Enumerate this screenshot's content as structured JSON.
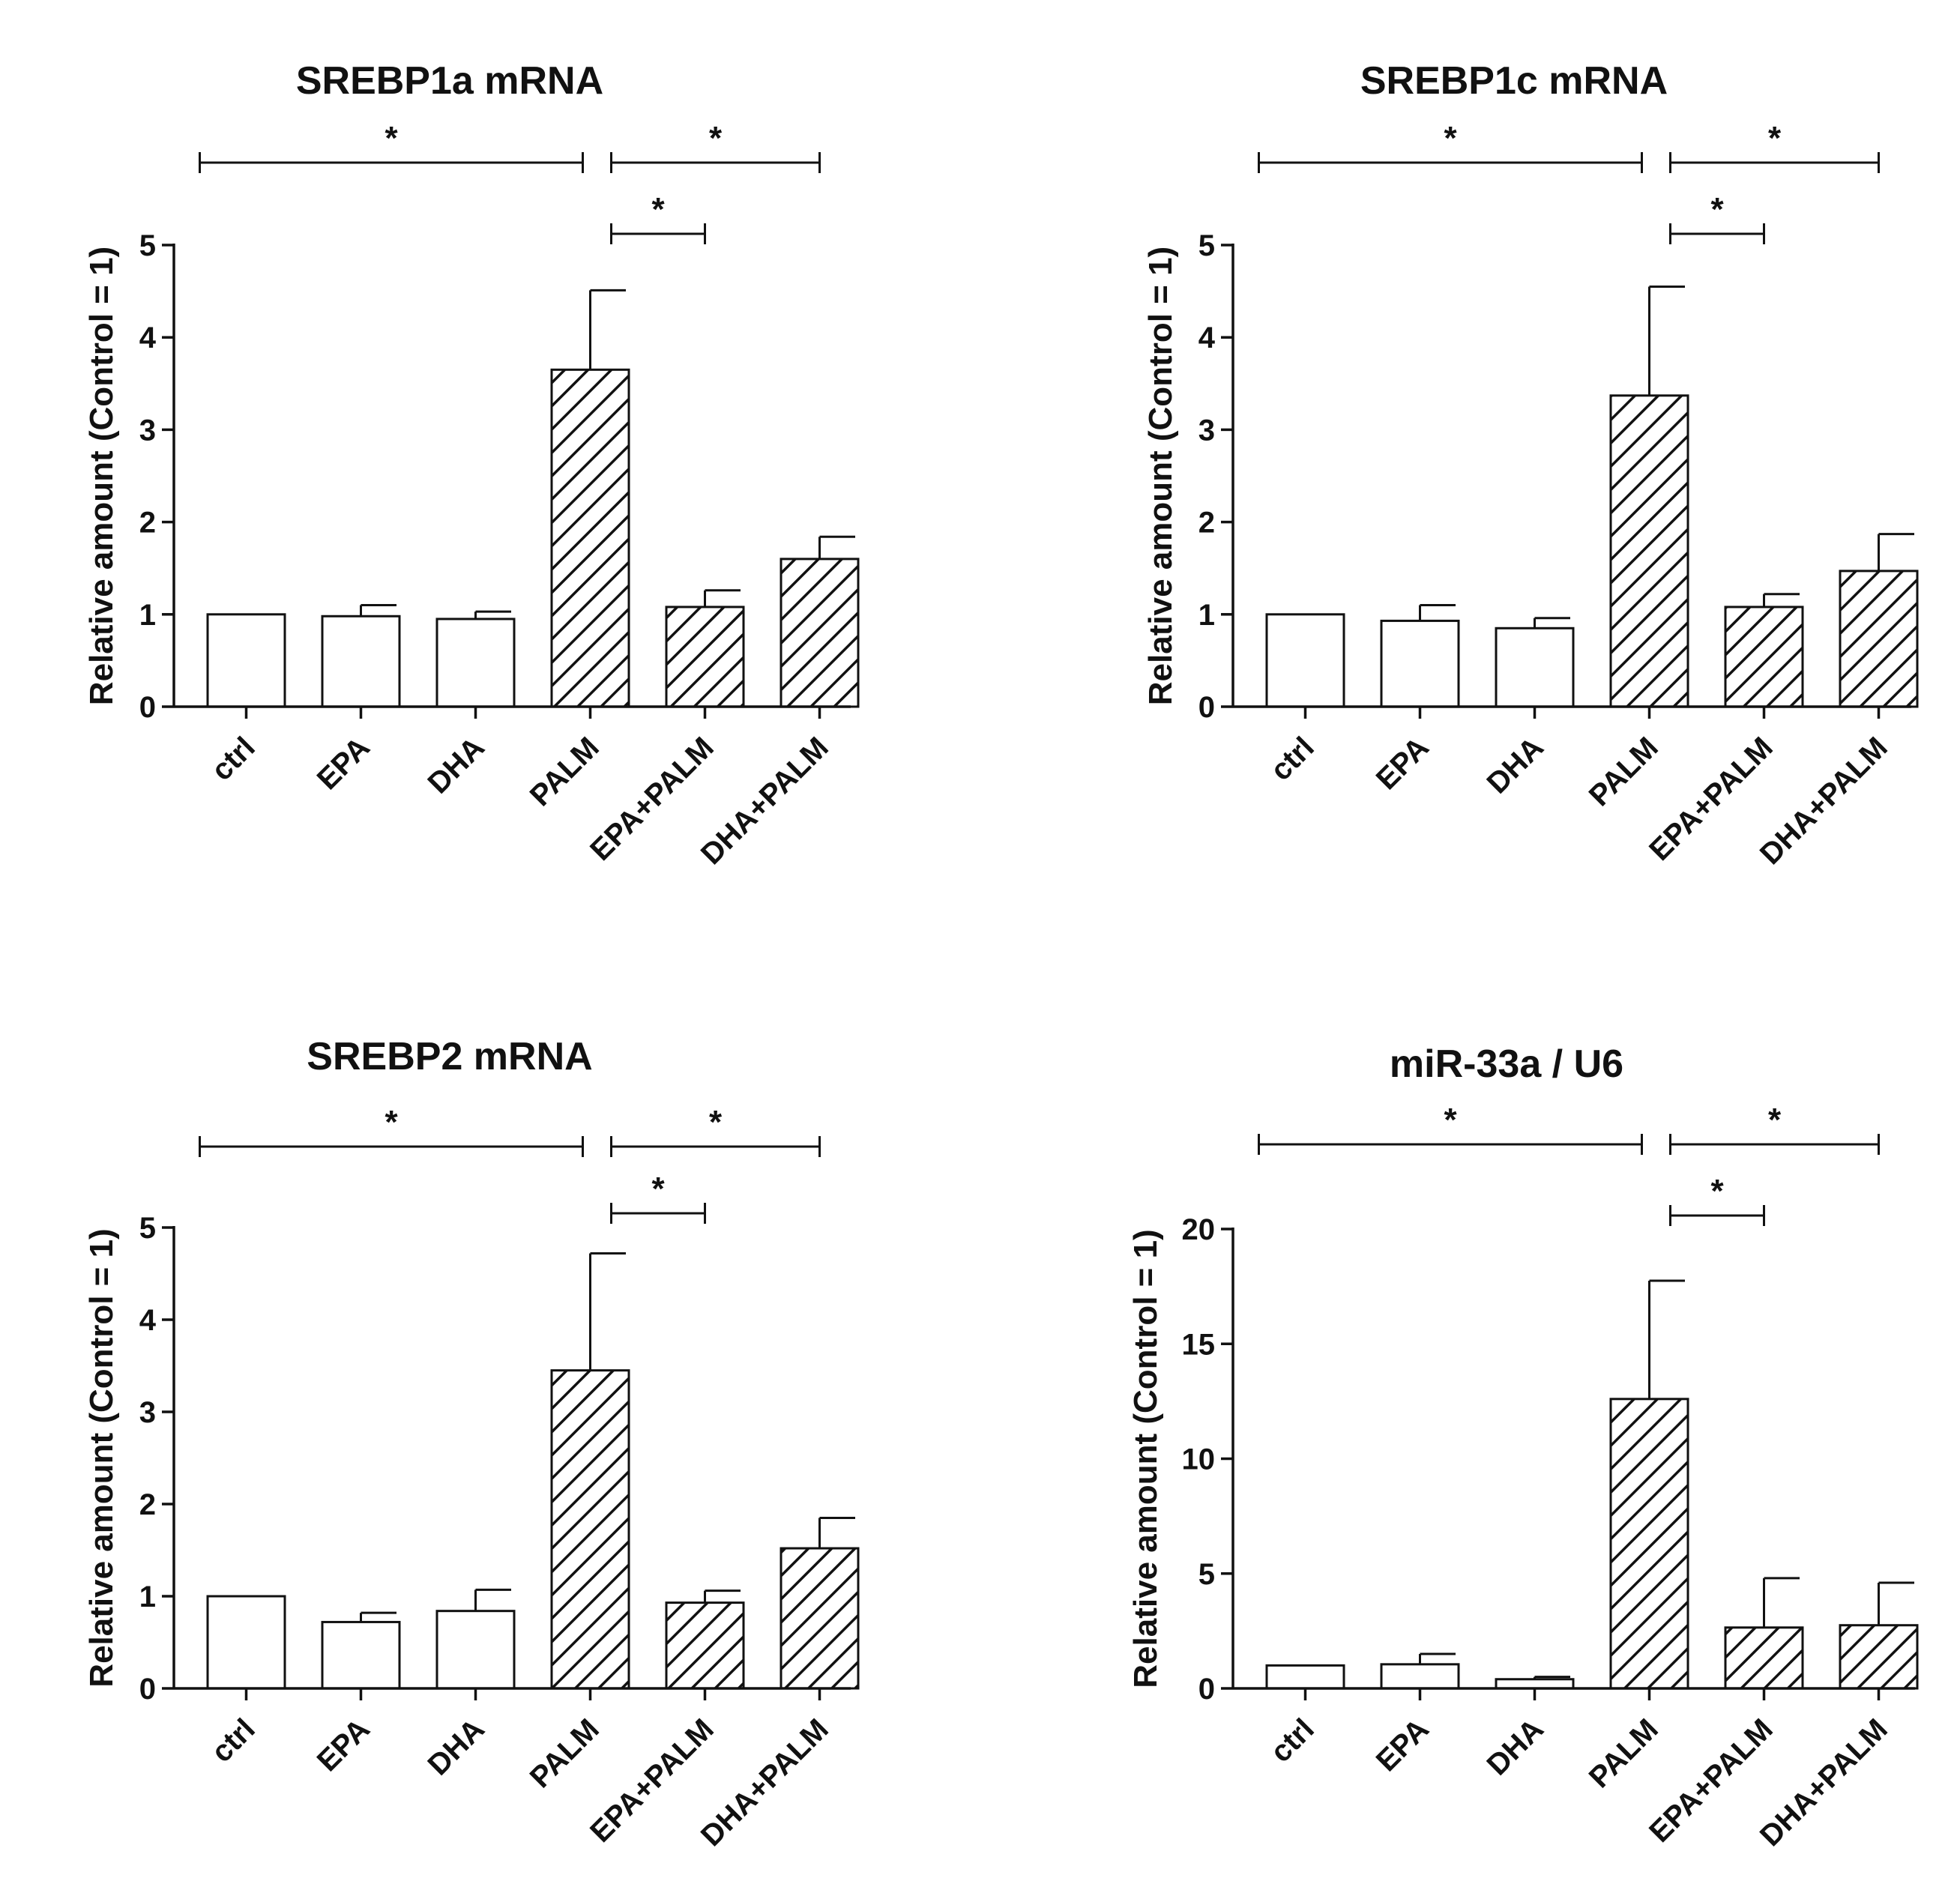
{
  "chart_data": [
    {
      "type": "bar",
      "title": "SREBP1a mRNA",
      "xlabel": "",
      "ylabel": "Relative amount (Control = 1)",
      "ylim": [
        0,
        5
      ],
      "yticks": [
        0,
        1,
        2,
        3,
        4,
        5
      ],
      "categories": [
        "ctrl",
        "EPA",
        "DHA",
        "PALM",
        "EPA+PALM",
        "DHA+PALM"
      ],
      "values": [
        1.0,
        0.98,
        0.95,
        3.65,
        1.08,
        1.6
      ],
      "errors": [
        0.0,
        0.12,
        0.08,
        0.86,
        0.18,
        0.24
      ],
      "hatched": [
        false,
        false,
        false,
        true,
        true,
        true
      ],
      "significance": [
        {
          "from": "ctrl",
          "to": "PALM",
          "label": "*"
        },
        {
          "from": "PALM",
          "to": "DHA+PALM",
          "label": "*"
        },
        {
          "from": "PALM",
          "to": "EPA+PALM",
          "label": "*"
        }
      ]
    },
    {
      "type": "bar",
      "title": "SREBP1c mRNA",
      "xlabel": "",
      "ylabel": "Relative amount (Control = 1)",
      "ylim": [
        0,
        5
      ],
      "yticks": [
        0,
        1,
        2,
        3,
        4,
        5
      ],
      "categories": [
        "ctrl",
        "EPA",
        "DHA",
        "PALM",
        "EPA+PALM",
        "DHA+PALM"
      ],
      "values": [
        1.0,
        0.93,
        0.85,
        3.37,
        1.08,
        1.47
      ],
      "errors": [
        0.0,
        0.17,
        0.11,
        1.18,
        0.14,
        0.4
      ],
      "hatched": [
        false,
        false,
        false,
        true,
        true,
        true
      ],
      "significance": [
        {
          "from": "ctrl",
          "to": "PALM",
          "label": "*"
        },
        {
          "from": "PALM",
          "to": "DHA+PALM",
          "label": "*"
        },
        {
          "from": "PALM",
          "to": "EPA+PALM",
          "label": "*"
        }
      ]
    },
    {
      "type": "bar",
      "title": "SREBP2 mRNA",
      "xlabel": "",
      "ylabel": "Relative amount (Control = 1)",
      "ylim": [
        0,
        5
      ],
      "yticks": [
        0,
        1,
        2,
        3,
        4,
        5
      ],
      "categories": [
        "ctrl",
        "EPA",
        "DHA",
        "PALM",
        "EPA+PALM",
        "DHA+PALM"
      ],
      "values": [
        1.0,
        0.72,
        0.84,
        3.45,
        0.93,
        1.52
      ],
      "errors": [
        0.0,
        0.1,
        0.23,
        1.27,
        0.13,
        0.33
      ],
      "hatched": [
        false,
        false,
        false,
        true,
        true,
        true
      ],
      "significance": [
        {
          "from": "ctrl",
          "to": "PALM",
          "label": "*"
        },
        {
          "from": "PALM",
          "to": "DHA+PALM",
          "label": "*"
        },
        {
          "from": "PALM",
          "to": "EPA+PALM",
          "label": "*"
        }
      ]
    },
    {
      "type": "bar",
      "title": "miR-33a / U6",
      "xlabel": "",
      "ylabel": "Relative amount (Control = 1)",
      "ylim": [
        0,
        20
      ],
      "yticks": [
        0,
        5,
        10,
        15,
        20
      ],
      "categories": [
        "ctrl",
        "EPA",
        "DHA",
        "PALM",
        "EPA+PALM",
        "DHA+PALM"
      ],
      "values": [
        1.0,
        1.05,
        0.4,
        12.6,
        2.65,
        2.75
      ],
      "errors": [
        0.0,
        0.45,
        0.1,
        5.15,
        2.15,
        1.85
      ],
      "hatched": [
        false,
        false,
        false,
        true,
        true,
        true
      ],
      "significance": [
        {
          "from": "ctrl",
          "to": "PALM",
          "label": "*"
        },
        {
          "from": "PALM",
          "to": "DHA+PALM",
          "label": "*"
        },
        {
          "from": "PALM",
          "to": "EPA+PALM",
          "label": "*"
        }
      ]
    }
  ],
  "colors": {
    "ink": "#111111",
    "bar_fill": "#ffffff",
    "background": "#ffffff"
  }
}
